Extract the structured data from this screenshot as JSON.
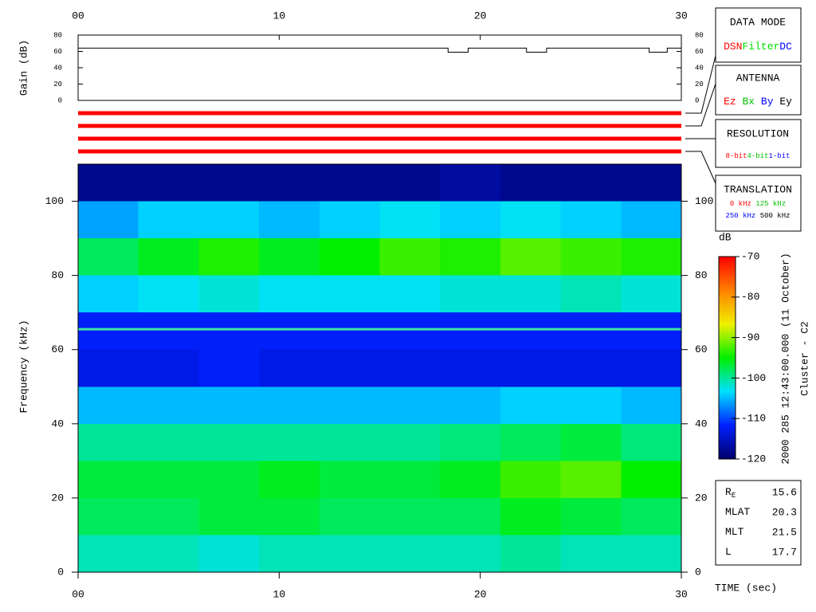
{
  "chart_data": [
    {
      "type": "line",
      "ylabel": "Gain (dB)",
      "xlim": [
        0,
        30
      ],
      "xticks": [
        {
          "value": 0,
          "label": "00"
        },
        10,
        20,
        30
      ],
      "ylim": [
        0,
        80
      ],
      "yticks": [
        0,
        20,
        40,
        60,
        80
      ],
      "series": [
        {
          "color": "#000000",
          "x": [
            0,
            18.4,
            18.4,
            19.4,
            19.4,
            22.3,
            22.3,
            23.3,
            23.3,
            28.4,
            28.4,
            29.3,
            29.3,
            30
          ],
          "values": [
            64,
            64,
            59,
            59,
            64,
            64,
            59,
            59,
            64,
            64,
            59,
            59,
            64,
            64
          ]
        }
      ]
    },
    {
      "type": "heatmap",
      "xlabel": "TIME (sec)",
      "ylabel": "Frequency (kHz)",
      "xlim": [
        0,
        30
      ],
      "xticks": [
        {
          "value": 0,
          "label": "00"
        },
        10,
        20,
        30
      ],
      "ylim": [
        0,
        110
      ],
      "yticks": [
        0,
        20,
        40,
        60,
        80,
        100
      ],
      "x_bins": [
        0,
        3,
        6,
        9,
        12,
        15,
        18,
        21,
        24,
        27,
        30
      ],
      "y_bins": [
        0,
        10,
        20,
        30,
        40,
        50,
        60,
        70,
        80,
        90,
        100,
        110
      ],
      "z": [
        [
          -101,
          -101,
          -102,
          -101,
          -101,
          -101,
          -101,
          -100,
          -101,
          -101
        ],
        [
          -98,
          -98,
          -97,
          -97,
          -98,
          -98,
          -98,
          -96,
          -97,
          -98
        ],
        [
          -97,
          -97,
          -97,
          -96,
          -97,
          -97,
          -96,
          -93,
          -92,
          -95
        ],
        [
          -100,
          -100,
          -100,
          -100,
          -100,
          -100,
          -99,
          -98,
          -97,
          -99
        ],
        [
          -105,
          -105,
          -105,
          -105,
          -105,
          -105,
          -105,
          -104,
          -104,
          -105
        ],
        [
          -113,
          -113,
          -112,
          -113,
          -113,
          -113,
          -113,
          -113,
          -113,
          -113
        ],
        [
          -112,
          -112,
          -112,
          -112,
          -112,
          -112,
          -112,
          -112,
          -112,
          -112
        ],
        [
          -104,
          -103,
          -102,
          -103,
          -103,
          -103,
          -102,
          -102,
          -101,
          -102
        ],
        [
          -98,
          -96,
          -94,
          -96,
          -95,
          -93,
          -94,
          -92,
          -93,
          -94
        ],
        [
          -106,
          -104,
          -104,
          -105,
          -104,
          -103,
          -104,
          -103,
          -104,
          -105
        ],
        [
          -118,
          -118,
          -118,
          -118,
          -118,
          -118,
          -117,
          -118,
          -118,
          -118
        ]
      ],
      "hlines": [
        65.5
      ],
      "hline_color": "#40e8a0",
      "colormap": [
        "#00006a",
        "#0020ff",
        "#00e0ff",
        "#00f000",
        "#f0f000",
        "#ff8000",
        "#ff0000"
      ],
      "colorbar": {
        "label": "dB",
        "lim": [
          -120,
          -70
        ],
        "ticks": [
          -70,
          -80,
          -90,
          -100,
          -110,
          -120
        ]
      }
    }
  ],
  "panels": {
    "data_mode": {
      "title": "DATA MODE",
      "items": [
        {
          "text": "DSN",
          "color": "#ff0000"
        },
        {
          "text": "Filter",
          "color": "#00e000"
        },
        {
          "text": "DC",
          "color": "#0000ff"
        }
      ]
    },
    "antenna": {
      "title": "ANTENNA",
      "items": [
        {
          "text": "Ez",
          "color": "#ff0000"
        },
        {
          "text": "Bx",
          "color": "#00c000"
        },
        {
          "text": "By",
          "color": "#0000ff"
        },
        {
          "text": "Ey",
          "color": "#000000"
        }
      ]
    },
    "resolution": {
      "title": "RESOLUTION",
      "items": [
        {
          "text": "8-bit",
          "color": "#ff0000"
        },
        {
          "text": "4-bit",
          "color": "#00c000"
        },
        {
          "text": "1-bit",
          "color": "#0000ff"
        }
      ]
    },
    "translation": {
      "title": "TRANSLATION",
      "items": [
        {
          "text": "0 kHz",
          "color": "#ff0000"
        },
        {
          "text": "125 kHz",
          "color": "#00c000"
        },
        {
          "text": "250 kHz",
          "color": "#0000ff"
        },
        {
          "text": "500 kHz",
          "color": "#000000"
        }
      ]
    }
  },
  "side_text": [
    "2000 285 12:43:00.000 (11 October)",
    "Cluster - C2"
  ],
  "info": [
    {
      "label": "R",
      "sub": "E",
      "value": 15.6
    },
    {
      "label": "MLAT",
      "value": 20.3
    },
    {
      "label": "MLT",
      "value": 21.5
    },
    {
      "label": "L",
      "value": 17.7
    }
  ]
}
